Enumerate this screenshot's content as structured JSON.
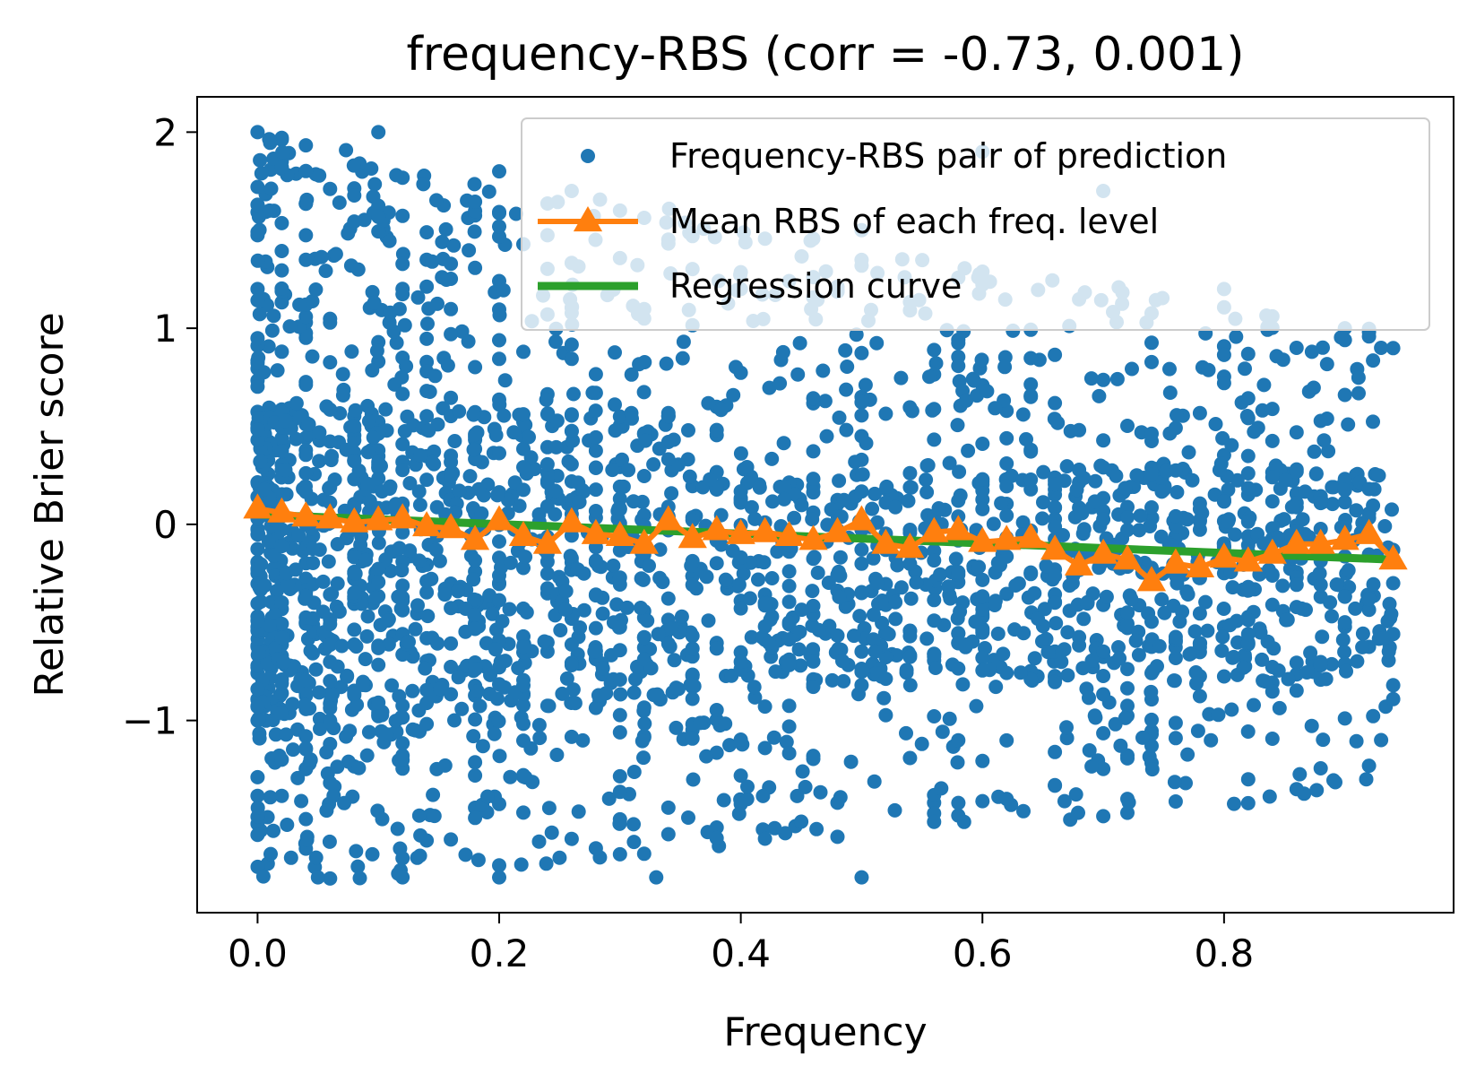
{
  "chart_data": {
    "type": "scatter",
    "title": "frequency-RBS (corr = -0.73, 0.001)",
    "xlabel": "Frequency",
    "ylabel": "Relative Brier score",
    "xlim": [
      -0.05,
      0.99
    ],
    "ylim": [
      -1.98,
      2.18
    ],
    "xticks": [
      0.0,
      0.2,
      0.4,
      0.6,
      0.8
    ],
    "xtick_labels": [
      "0.0",
      "0.2",
      "0.4",
      "0.6",
      "0.8"
    ],
    "yticks": [
      -1,
      0,
      1,
      2
    ],
    "ytick_labels": [
      "−1",
      "0",
      "1",
      "2"
    ],
    "grid": false,
    "legend_position": "top-right",
    "series": [
      {
        "name": "Frequency-RBS pair of prediction",
        "kind": "scatter",
        "color": "#1f77b4",
        "note_range": "dense cloud; y spans roughly -1.8 to 2.0 near x=0, narrowing to about -1.2 to 1.0 near x=0.94",
        "points_sample": [
          [
            0.0,
            2.0
          ],
          [
            0.01,
            1.6
          ],
          [
            0.02,
            -1.2
          ],
          [
            0.05,
            -1.8
          ],
          [
            0.1,
            2.0
          ],
          [
            0.12,
            -1.8
          ],
          [
            0.2,
            1.8
          ],
          [
            0.2,
            -1.8
          ],
          [
            0.25,
            -1.7
          ],
          [
            0.3,
            1.6
          ],
          [
            0.33,
            -1.8
          ],
          [
            0.38,
            -1.6
          ],
          [
            0.4,
            1.2
          ],
          [
            0.5,
            1.5
          ],
          [
            0.5,
            -1.8
          ],
          [
            0.6,
            1.9
          ],
          [
            0.62,
            -1.4
          ],
          [
            0.7,
            1.7
          ],
          [
            0.72,
            -1.4
          ],
          [
            0.8,
            1.2
          ],
          [
            0.82,
            -1.3
          ],
          [
            0.86,
            0.9
          ],
          [
            0.9,
            1.0
          ],
          [
            0.93,
            0.9
          ],
          [
            0.93,
            -1.1
          ],
          [
            0.94,
            -0.3
          ]
        ]
      },
      {
        "name": "Mean RBS of each freq. level",
        "kind": "line-marker",
        "marker": "triangle",
        "color": "#ff7f0e",
        "x": [
          0.0,
          0.02,
          0.04,
          0.06,
          0.08,
          0.1,
          0.12,
          0.14,
          0.16,
          0.18,
          0.2,
          0.22,
          0.24,
          0.26,
          0.28,
          0.3,
          0.32,
          0.34,
          0.36,
          0.38,
          0.4,
          0.42,
          0.44,
          0.46,
          0.48,
          0.5,
          0.52,
          0.54,
          0.56,
          0.58,
          0.6,
          0.62,
          0.64,
          0.66,
          0.68,
          0.7,
          0.72,
          0.74,
          0.76,
          0.78,
          0.8,
          0.82,
          0.84,
          0.86,
          0.88,
          0.9,
          0.92,
          0.94
        ],
        "y": [
          0.08,
          0.06,
          0.04,
          0.03,
          0.01,
          0.02,
          0.03,
          -0.01,
          -0.02,
          -0.08,
          0.02,
          -0.06,
          -0.1,
          0.01,
          -0.05,
          -0.06,
          -0.1,
          0.02,
          -0.07,
          -0.03,
          -0.05,
          -0.04,
          -0.06,
          -0.08,
          -0.04,
          0.02,
          -0.1,
          -0.12,
          -0.04,
          -0.03,
          -0.09,
          -0.08,
          -0.07,
          -0.13,
          -0.21,
          -0.15,
          -0.18,
          -0.29,
          -0.2,
          -0.22,
          -0.17,
          -0.19,
          -0.15,
          -0.1,
          -0.1,
          -0.08,
          -0.05,
          -0.18
        ]
      },
      {
        "name": "Regression curve",
        "kind": "line",
        "color": "#2ca02c",
        "x": [
          0.0,
          0.94
        ],
        "y": [
          0.05,
          -0.18
        ]
      }
    ]
  }
}
